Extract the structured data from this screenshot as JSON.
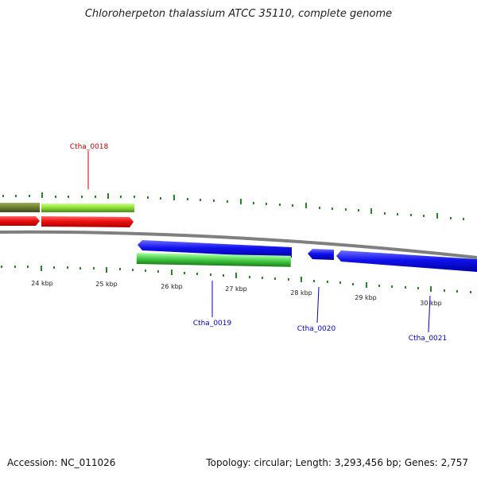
{
  "title": "Chloroherpeton thalassium ATCC 35110, complete genome",
  "ruler": {
    "tick_labels": [
      "24 kbp",
      "25 kbp",
      "26 kbp",
      "27 kbp",
      "28 kbp",
      "29 kbp",
      "30 kbp"
    ]
  },
  "genes": [
    {
      "label": "Ctha_0018",
      "color": "#cc0000"
    },
    {
      "label": "Ctha_0019",
      "color": "#0000cc"
    },
    {
      "label": "Ctha_0020",
      "color": "#0000cc"
    },
    {
      "label": "Ctha_0021",
      "color": "#0000cc"
    }
  ],
  "colors": {
    "forward_cds": "#ee1111",
    "reverse_cds": "#1111ee",
    "forward_feature": "#88dd33",
    "forward_feature_dark": "#6b7d30",
    "reverse_feature": "#44cc44",
    "backbone": "#888888",
    "tick": "#228822"
  },
  "footer": {
    "accession": "Accession: NC_011026",
    "summary": "Topology: circular; Length: 3,293,456 bp; Genes: 2,757"
  }
}
